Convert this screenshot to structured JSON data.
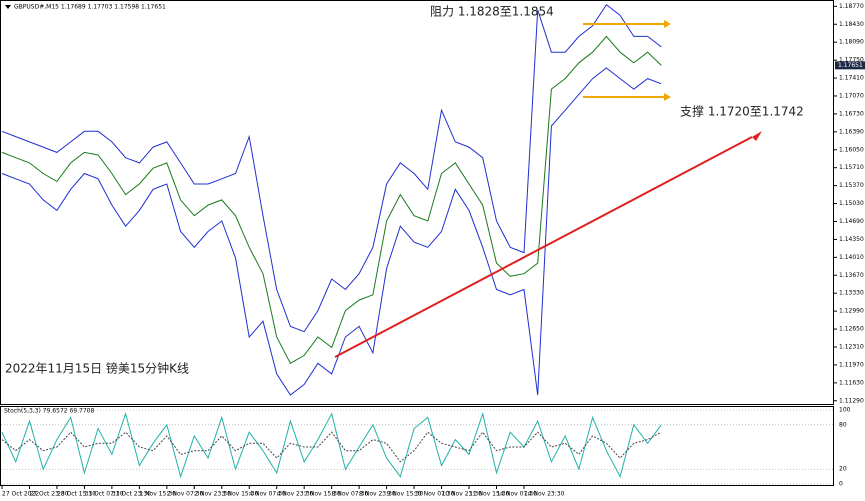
{
  "chart_data": [
    {
      "type": "line",
      "title": "GBPUSD#,M15  1.17689 1.17703 1.17598 1.17651",
      "annotations": [
        "阻力 1.1828至1.1854",
        "支撑 1.1720至1.1742",
        "2022年11月15日 镑美15分钟K线"
      ],
      "current_price": {
        "value": 1.17651,
        "label": "1.17651"
      },
      "xlim": [
        0,
        60.5
      ],
      "xticks": [
        {
          "value": 0,
          "label": "27 Oct 2022"
        },
        {
          "value": 2,
          "label": "27 Oct 23:30"
        },
        {
          "value": 4,
          "label": "28 Oct 15:30"
        },
        {
          "value": 6,
          "label": "31 Oct 07:30"
        },
        {
          "value": 8,
          "label": "31 Oct 23:30"
        },
        {
          "value": 10,
          "label": "1 Nov 15:30"
        },
        {
          "value": 12,
          "label": "2 Nov 07:30"
        },
        {
          "value": 14,
          "label": "2 Nov 23:30"
        },
        {
          "value": 16,
          "label": "3 Nov 15:30"
        },
        {
          "value": 18,
          "label": "4 Nov 07:30"
        },
        {
          "value": 20,
          "label": "4 Nov 23:30"
        },
        {
          "value": 22,
          "label": "7 Nov 15:30"
        },
        {
          "value": 24,
          "label": "8 Nov 07:30"
        },
        {
          "value": 26,
          "label": "8 Nov 23:30"
        },
        {
          "value": 28,
          "label": "9 Nov 15:30"
        },
        {
          "value": 30,
          "label": "10 Nov 07:30"
        },
        {
          "value": 32,
          "label": "10 Nov 23:30"
        },
        {
          "value": 34,
          "label": "11 Nov 15:30"
        },
        {
          "value": 36,
          "label": "14 Nov 07:30"
        },
        {
          "value": 38,
          "label": "14 Nov 23:30"
        }
      ],
      "ylim": [
        1.1121,
        1.1889
      ],
      "yticks": [
        {
          "value": 1.1877,
          "label": "1.18770"
        },
        {
          "value": 1.1843,
          "label": "1.18430"
        },
        {
          "value": 1.1809,
          "label": "1.18090"
        },
        {
          "value": 1.1775,
          "label": "1.17750"
        },
        {
          "value": 1.1741,
          "label": "1.17410"
        },
        {
          "value": 1.1707,
          "label": "1.17070"
        },
        {
          "value": 1.1673,
          "label": "1.16730"
        },
        {
          "value": 1.1639,
          "label": "1.16390"
        },
        {
          "value": 1.1605,
          "label": "1.16050"
        },
        {
          "value": 1.1571,
          "label": "1.15710"
        },
        {
          "value": 1.1537,
          "label": "1.15370"
        },
        {
          "value": 1.1503,
          "label": "1.15030"
        },
        {
          "value": 1.1469,
          "label": "1.14690"
        },
        {
          "value": 1.1435,
          "label": "1.14350"
        },
        {
          "value": 1.1401,
          "label": "1.14010"
        },
        {
          "value": 1.1367,
          "label": "1.13670"
        },
        {
          "value": 1.1333,
          "label": "1.13330"
        },
        {
          "value": 1.1299,
          "label": "1.12990"
        },
        {
          "value": 1.1265,
          "label": "1.12650"
        },
        {
          "value": 1.1231,
          "label": "1.12310"
        },
        {
          "value": 1.1197,
          "label": "1.11970"
        },
        {
          "value": 1.1163,
          "label": "1.11630"
        },
        {
          "value": 1.1129,
          "label": "1.11290"
        }
      ],
      "series": [
        {
          "color": "#1a7a1a",
          "values": [
            1.16,
            1.159,
            1.158,
            1.156,
            1.1545,
            1.158,
            1.16,
            1.1595,
            1.156,
            1.152,
            1.154,
            1.157,
            1.158,
            1.151,
            1.148,
            1.15,
            1.151,
            1.148,
            1.142,
            1.137,
            1.125,
            1.12,
            1.1215,
            1.125,
            1.123,
            1.13,
            1.132,
            1.133,
            1.147,
            1.152,
            1.148,
            1.147,
            1.156,
            1.158,
            1.154,
            1.15,
            1.139,
            1.1365,
            1.137,
            1.139,
            1.172,
            1.174,
            1.177,
            1.179,
            1.182,
            1.179,
            1.177,
            1.179,
            1.1765
          ]
        },
        {
          "color": "#1f2fd0",
          "values": [
            1.164,
            1.163,
            1.162,
            1.161,
            1.16,
            1.162,
            1.164,
            1.164,
            1.162,
            1.159,
            1.158,
            1.161,
            1.162,
            1.158,
            1.154,
            1.154,
            1.155,
            1.156,
            1.163,
            1.148,
            1.134,
            1.127,
            1.126,
            1.13,
            1.136,
            1.134,
            1.137,
            1.142,
            1.154,
            1.158,
            1.156,
            1.153,
            1.168,
            1.162,
            1.161,
            1.159,
            1.147,
            1.142,
            1.141,
            1.187,
            1.179,
            1.179,
            1.182,
            1.184,
            1.188,
            1.186,
            1.182,
            1.182,
            1.18
          ]
        },
        {
          "color": "#1f2fd0",
          "values": [
            1.156,
            1.155,
            1.154,
            1.151,
            1.149,
            1.153,
            1.156,
            1.155,
            1.15,
            1.146,
            1.149,
            1.153,
            1.154,
            1.145,
            1.142,
            1.145,
            1.147,
            1.14,
            1.125,
            1.128,
            1.118,
            1.114,
            1.116,
            1.12,
            1.118,
            1.125,
            1.127,
            1.122,
            1.138,
            1.146,
            1.143,
            1.142,
            1.145,
            1.153,
            1.149,
            1.142,
            1.134,
            1.133,
            1.134,
            1.114,
            1.165,
            1.168,
            1.171,
            1.174,
            1.176,
            1.174,
            1.172,
            1.174,
            1.173
          ]
        }
      ]
    },
    {
      "type": "line",
      "title": "Stoch(5,3,3) 79.6572 69.7708",
      "ylim": [
        0,
        100
      ],
      "yticks": [
        100,
        80,
        20,
        0
      ],
      "series": [
        {
          "color": "#20b2aa",
          "values": [
            70,
            30,
            85,
            20,
            60,
            90,
            15,
            75,
            40,
            95,
            25,
            55,
            80,
            10,
            65,
            35,
            90,
            20,
            70,
            45,
            15,
            85,
            30,
            60,
            95,
            20,
            50,
            80,
            35,
            10,
            75,
            90,
            25,
            60,
            40,
            95,
            15,
            70,
            50,
            85,
            30,
            65,
            20,
            90,
            45,
            10,
            80,
            55,
            80
          ]
        },
        {
          "color": "#444444",
          "dashed": true,
          "values": [
            60,
            45,
            60,
            45,
            50,
            70,
            50,
            55,
            55,
            70,
            50,
            45,
            65,
            40,
            45,
            45,
            65,
            45,
            55,
            55,
            35,
            55,
            50,
            50,
            70,
            45,
            45,
            60,
            55,
            30,
            45,
            70,
            55,
            50,
            45,
            70,
            45,
            50,
            50,
            70,
            50,
            55,
            40,
            65,
            55,
            35,
            55,
            60,
            70
          ]
        }
      ]
    }
  ]
}
